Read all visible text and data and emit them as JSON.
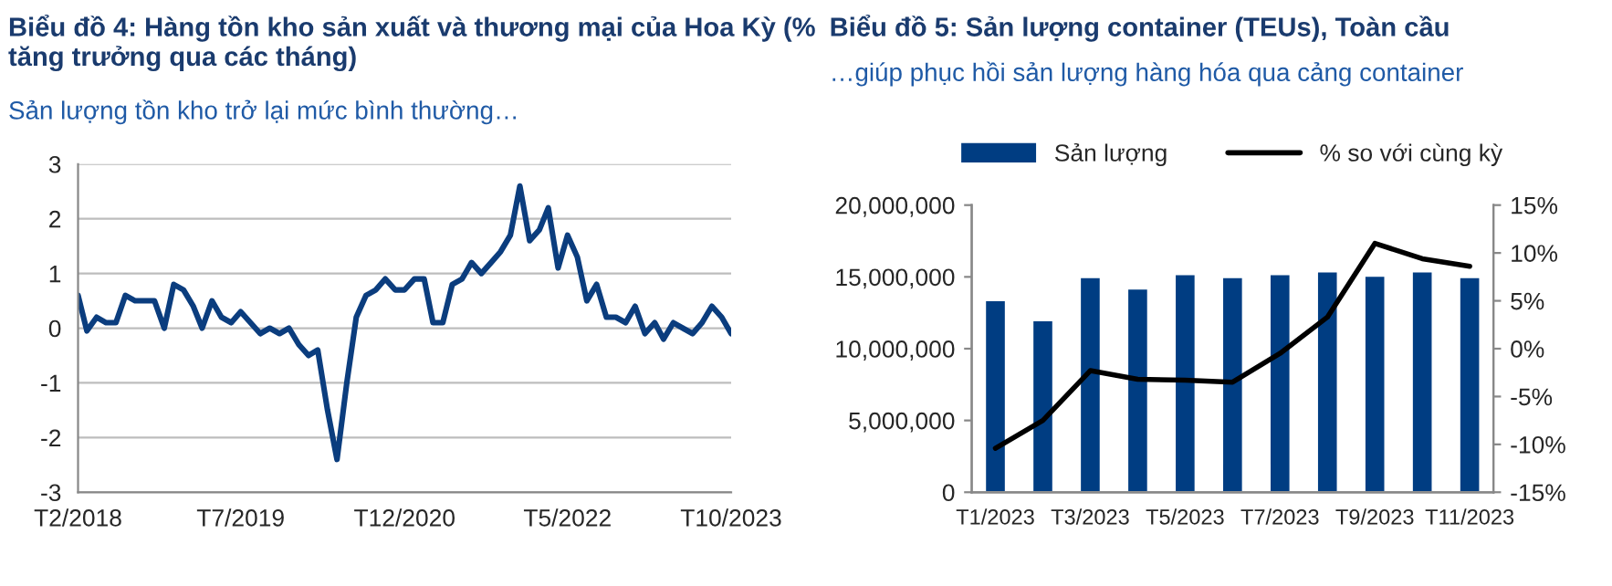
{
  "chart_data": [
    {
      "type": "line",
      "title": "Biểu đồ 4: Hàng tồn kho sản xuất và thương mại của Hoa Kỳ (% tăng trưởng qua các tháng)",
      "subtitle": "Sản lượng tồn kho trở lại mức bình thường…",
      "x": [
        "2018-02",
        "2018-03",
        "2018-04",
        "2018-05",
        "2018-06",
        "2018-07",
        "2018-08",
        "2018-09",
        "2018-10",
        "2018-11",
        "2018-12",
        "2019-01",
        "2019-02",
        "2019-03",
        "2019-04",
        "2019-05",
        "2019-06",
        "2019-07",
        "2019-08",
        "2019-09",
        "2019-10",
        "2019-11",
        "2019-12",
        "2020-01",
        "2020-02",
        "2020-03",
        "2020-04",
        "2020-05",
        "2020-06",
        "2020-07",
        "2020-08",
        "2020-09",
        "2020-10",
        "2020-11",
        "2020-12",
        "2021-01",
        "2021-02",
        "2021-03",
        "2021-04",
        "2021-05",
        "2021-06",
        "2021-07",
        "2021-08",
        "2021-09",
        "2021-10",
        "2021-11",
        "2021-12",
        "2022-01",
        "2022-02",
        "2022-03",
        "2022-04",
        "2022-05",
        "2022-06",
        "2022-07",
        "2022-08",
        "2022-09",
        "2022-10",
        "2022-11",
        "2022-12",
        "2023-01",
        "2023-02",
        "2023-03",
        "2023-04",
        "2023-05",
        "2023-06",
        "2023-07",
        "2023-08",
        "2023-09",
        "2023-10"
      ],
      "series": [
        {
          "color": "#0b3d7e",
          "values": [
            0.6,
            -0.05,
            0.2,
            0.1,
            0.1,
            0.6,
            0.5,
            0.5,
            0.5,
            0.0,
            0.8,
            0.7,
            0.4,
            0.0,
            0.5,
            0.2,
            0.1,
            0.3,
            0.1,
            -0.1,
            0.0,
            -0.1,
            0.0,
            -0.3,
            -0.5,
            -0.4,
            -1.5,
            -2.4,
            -1.0,
            0.2,
            0.6,
            0.7,
            0.9,
            0.7,
            0.7,
            0.9,
            0.9,
            0.1,
            0.1,
            0.8,
            0.9,
            1.2,
            1.0,
            1.2,
            1.4,
            1.7,
            2.6,
            1.6,
            1.8,
            2.2,
            1.1,
            1.7,
            1.3,
            0.5,
            0.8,
            0.2,
            0.2,
            0.1,
            0.4,
            -0.1,
            0.1,
            -0.2,
            0.1,
            0.0,
            -0.1,
            0.1,
            0.4,
            0.2,
            -0.1
          ]
        }
      ],
      "xlim": [
        "2018-02",
        "2023-10"
      ],
      "xticks": [
        {
          "value": "2018-02",
          "label": "T2/2018"
        },
        {
          "value": "2019-07",
          "label": "T7/2019"
        },
        {
          "value": "2020-12",
          "label": "T12/2020"
        },
        {
          "value": "2022-05",
          "label": "T5/2022"
        },
        {
          "value": "2023-10",
          "label": "T10/2023"
        }
      ],
      "ylim": [
        -3,
        3
      ],
      "yticks": [
        -3,
        -2,
        -1,
        0,
        1,
        2,
        3
      ],
      "grid": "y"
    },
    {
      "type": "bar",
      "title": "Biểu đồ 5: Sản lượng container (TEUs), Toàn cầu",
      "subtitle": "…giúp phục hồi sản lượng hàng hóa qua cảng container",
      "categories": [
        "T1/2023",
        null,
        "T3/2023",
        null,
        "T5/2023",
        null,
        "T7/2023",
        null,
        "T9/2023",
        null,
        "T11/2023"
      ],
      "series": [
        {
          "name": "Sản lượng",
          "color": "#003d82",
          "values": [
            13400000,
            12000000,
            15000000,
            14200000,
            15200000,
            15000000,
            15200000,
            15400000,
            15100000,
            15400000,
            15000000
          ]
        },
        {
          "name": "% so với cùng kỳ",
          "type": "line",
          "axis": "y2",
          "color": "#000000",
          "values": [
            -10.4,
            -7.5,
            -2.3,
            -3.2,
            -3.3,
            -3.5,
            -0.5,
            3.3,
            11.0,
            9.4,
            8.6
          ]
        }
      ],
      "ylim": [
        0,
        20000000
      ],
      "yticks": [
        {
          "value": 0,
          "label": "0"
        },
        {
          "value": 5000000,
          "label": "5,000,000"
        },
        {
          "value": 10000000,
          "label": "10,000,000"
        },
        {
          "value": 15000000,
          "label": "15,000,000"
        },
        {
          "value": 20000000,
          "label": "20,000,000"
        }
      ],
      "y2lim": [
        -15,
        15
      ],
      "y2ticks": [
        {
          "value": -15,
          "label": "-15%"
        },
        {
          "value": -10,
          "label": "-10%"
        },
        {
          "value": -5,
          "label": "-5%"
        },
        {
          "value": 0,
          "label": "0%"
        },
        {
          "value": 5,
          "label": "5%"
        },
        {
          "value": 10,
          "label": "10%"
        },
        {
          "value": 15,
          "label": "15%"
        }
      ],
      "legend": "top"
    }
  ]
}
